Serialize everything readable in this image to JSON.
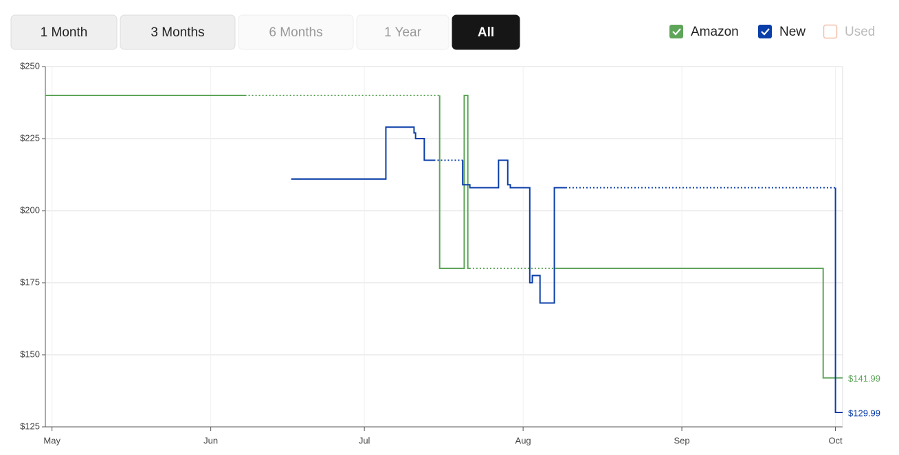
{
  "controls": {
    "ranges": [
      {
        "label": "1 Month",
        "state": "enabled"
      },
      {
        "label": "3 Months",
        "state": "enabled"
      },
      {
        "label": "6 Months",
        "state": "disabled"
      },
      {
        "label": "1 Year",
        "state": "disabled"
      },
      {
        "label": "All",
        "state": "selected"
      }
    ]
  },
  "chart_data": {
    "type": "step",
    "xlim": [
      -1.3,
      154.4
    ],
    "xticks": [
      {
        "value": 0,
        "label": "May"
      },
      {
        "value": 31,
        "label": "Jun"
      },
      {
        "value": 61,
        "label": "Jul"
      },
      {
        "value": 92,
        "label": "Aug"
      },
      {
        "value": 123,
        "label": "Sep"
      },
      {
        "value": 153,
        "label": "Oct"
      }
    ],
    "ylim": [
      125,
      250
    ],
    "yticks": [
      {
        "value": 125,
        "label": "$125"
      },
      {
        "value": 150,
        "label": "$150"
      },
      {
        "value": 175,
        "label": "$175"
      },
      {
        "value": 200,
        "label": "$200"
      },
      {
        "value": 225,
        "label": "$225"
      },
      {
        "value": 250,
        "label": "$250"
      }
    ],
    "grid": true,
    "series": [
      {
        "name": "Amazon",
        "color": "#5ea55a",
        "visible": true,
        "x": [
          -1.3,
          37.7,
          75.7,
          80.5,
          81.2,
          81.5,
          98.3,
          150.6,
          154.4
        ],
        "values": [
          240,
          null,
          180,
          240,
          180,
          null,
          180,
          141.99,
          141.99
        ],
        "value_labels": [
          null,
          null,
          null,
          null,
          null,
          null,
          null,
          null,
          "$141.99"
        ]
      },
      {
        "name": "New",
        "color": "#0a3ea8",
        "visible": true,
        "x": [
          46.7,
          65.2,
          70.7,
          71.0,
          72.7,
          74.6,
          80.2,
          81.6,
          87.2,
          89.0,
          89.5,
          93.3,
          93.8,
          95.3,
          98.1,
          100.3,
          153.0,
          154.4
        ],
        "values": [
          210.99,
          228.99,
          226.99,
          224.99,
          217.49,
          null,
          208.99,
          207.99,
          217.49,
          208.99,
          207.99,
          174.99,
          177.49,
          167.99,
          207.99,
          null,
          129.99,
          129.99
        ],
        "value_labels": [
          null,
          null,
          null,
          null,
          null,
          null,
          null,
          null,
          null,
          null,
          null,
          null,
          null,
          null,
          null,
          null,
          null,
          "$129.99"
        ]
      },
      {
        "name": "Used",
        "color": "#f0a58a",
        "visible": false,
        "x": [],
        "values": [],
        "value_labels": []
      }
    ]
  }
}
